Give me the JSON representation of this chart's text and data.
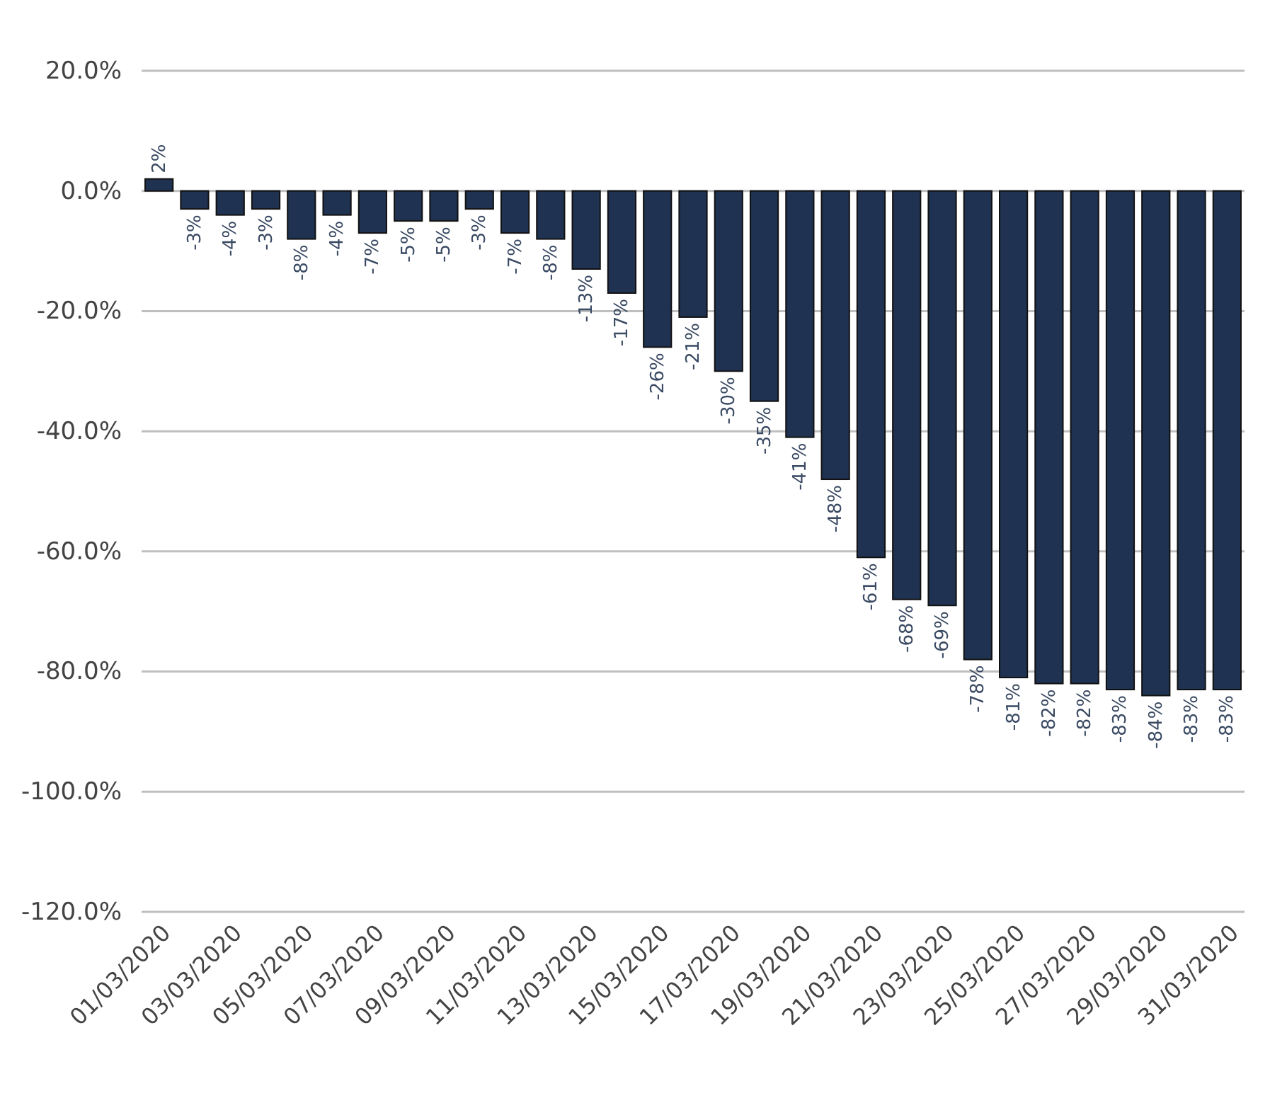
{
  "chart_data": {
    "type": "bar",
    "categories": [
      "01/03/2020",
      null,
      "03/03/2020",
      null,
      "05/03/2020",
      null,
      "07/03/2020",
      null,
      "09/03/2020",
      null,
      "11/03/2020",
      null,
      "13/03/2020",
      null,
      "15/03/2020",
      null,
      "17/03/2020",
      null,
      "19/03/2020",
      null,
      "21/03/2020",
      null,
      "23/03/2020",
      null,
      "25/03/2020",
      null,
      "27/03/2020",
      null,
      "29/03/2020",
      null,
      "31/03/2020"
    ],
    "values": [
      2,
      -3,
      -4,
      -3,
      -8,
      -4,
      -7,
      -5,
      -5,
      -3,
      -7,
      -8,
      -13,
      -17,
      -26,
      -21,
      -30,
      -35,
      -41,
      -48,
      -61,
      -68,
      -69,
      -78,
      -81,
      -82,
      -82,
      -83,
      -84,
      -83,
      -83
    ],
    "value_labels": [
      "2%",
      "-3%",
      "-4%",
      "-3%",
      "-8%",
      "-4%",
      "-7%",
      "-5%",
      "-5%",
      "-3%",
      "-7%",
      "-8%",
      "-13%",
      "-17%",
      "-26%",
      "-21%",
      "-30%",
      "-35%",
      "-41%",
      "-48%",
      "-61%",
      "-68%",
      "-69%",
      "-78%",
      "-81%",
      "-82%",
      "-82%",
      "-83%",
      "-84%",
      "-83%",
      "-83%"
    ],
    "color": "#1f3251",
    "ylim": [
      -120,
      20
    ],
    "yticks": [
      {
        "value": 20,
        "label": "20.0%"
      },
      {
        "value": 0,
        "label": "0.0%"
      },
      {
        "value": -20,
        "label": "-20.0%"
      },
      {
        "value": -40,
        "label": "-40.0%"
      },
      {
        "value": -60,
        "label": "-60.0%"
      },
      {
        "value": -80,
        "label": "-80.0%"
      },
      {
        "value": -100,
        "label": "-100.0%"
      },
      {
        "value": -120,
        "label": "-120.0%"
      }
    ],
    "grid": "y"
  }
}
